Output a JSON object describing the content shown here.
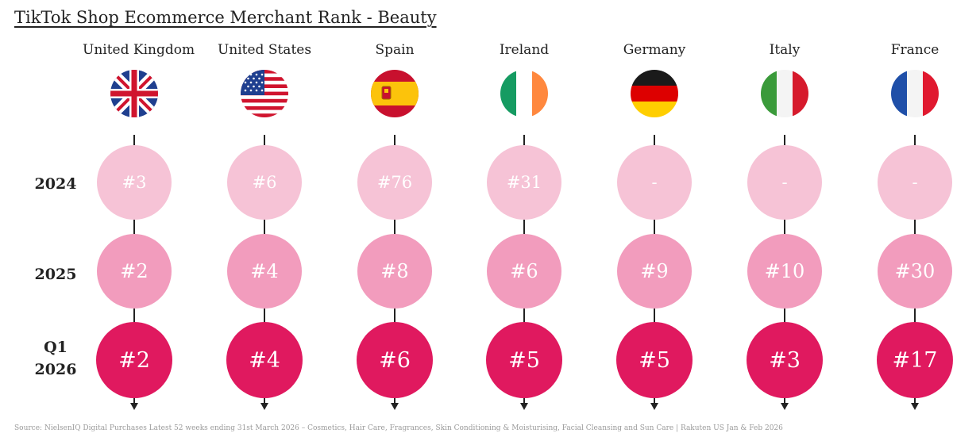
{
  "title": "TikTok Shop Ecommerce Merchant Rank - Beauty",
  "row_labels": {
    "r2024": "2024",
    "r2025": "2025",
    "rq1": "Q1\n2026"
  },
  "countries": [
    {
      "name": "United Kingdom",
      "flag": "uk-flag-icon",
      "rank_2024": "#3",
      "rank_2025": "#2",
      "rank_q1_2026": "#2"
    },
    {
      "name": "United States",
      "flag": "us-flag-icon",
      "rank_2024": "#6",
      "rank_2025": "#4",
      "rank_q1_2026": "#4"
    },
    {
      "name": "Spain",
      "flag": "spain-flag-icon",
      "rank_2024": "#76",
      "rank_2025": "#8",
      "rank_q1_2026": "#6"
    },
    {
      "name": "Ireland",
      "flag": "ireland-flag-icon",
      "rank_2024": "#31",
      "rank_2025": "#6",
      "rank_q1_2026": "#5"
    },
    {
      "name": "Germany",
      "flag": "germany-flag-icon",
      "rank_2024": "-",
      "rank_2025": "#9",
      "rank_q1_2026": "#5"
    },
    {
      "name": "Italy",
      "flag": "italy-flag-icon",
      "rank_2024": "-",
      "rank_2025": "#10",
      "rank_q1_2026": "#3"
    },
    {
      "name": "France",
      "flag": "france-flag-icon",
      "rank_2024": "-",
      "rank_2025": "#30",
      "rank_q1_2026": "#17"
    }
  ],
  "colors": {
    "rank_2024": "#f6c3d6",
    "rank_2025": "#f29cbd",
    "rank_q1_2026": "#e0195f"
  },
  "source": "Source: NielsenIQ Digital Purchases Latest 52 weeks ending 31st March 2026 – Cosmetics, Hair Care, Fragrances, Skin Conditioning & Moisturising, Facial Cleansing and Sun Care | Rakuten US Jan & Feb 2026"
}
